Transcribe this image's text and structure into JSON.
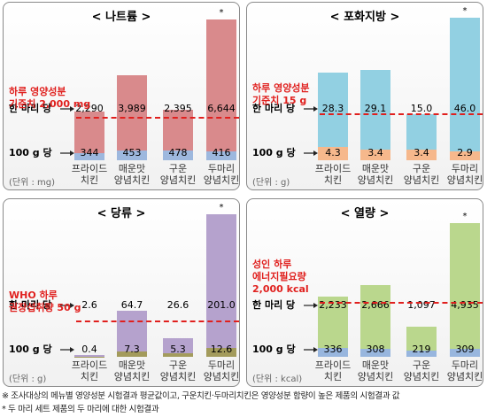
{
  "chart_data": [
    {
      "type": "bar",
      "title": "< 나트륨 >",
      "unit_label": "(단위 : mg)",
      "categories": [
        "프라이드 치킨",
        "매운맛 양념치킨",
        "구운 양념치킨",
        "두마리 양념치킨"
      ],
      "markers": [
        null,
        null,
        null,
        "*"
      ],
      "series": [
        {
          "name": "한 마리 당",
          "color": "#d98a8c",
          "values": [
            2290,
            3989,
            2395,
            6644
          ],
          "value_labels": [
            "2,290",
            "3,989",
            "2,395",
            "6,644"
          ]
        },
        {
          "name": "100 g 당",
          "color": "#9db8de",
          "values": [
            344,
            453,
            478,
            416
          ]
        }
      ],
      "reference": {
        "value": 2000,
        "label_lines": [
          "하루 영양성분",
          "기준치 2,000 mg"
        ],
        "color": "#e0201e"
      },
      "ylim": [
        0,
        7000
      ]
    },
    {
      "type": "bar",
      "title": "< 포화지방 >",
      "unit_label": "(단위 : g)",
      "categories": [
        "프라이드 치킨",
        "매운맛 양념치킨",
        "구운 양념치킨",
        "두마리 양념치킨"
      ],
      "markers": [
        null,
        null,
        null,
        "*"
      ],
      "series": [
        {
          "name": "한 마리 당",
          "color": "#92d0e2",
          "values": [
            28.3,
            29.1,
            15.0,
            46.0
          ],
          "value_labels": [
            "28.3",
            "29.1",
            "15.0",
            "46.0"
          ]
        },
        {
          "name": "100 g 당",
          "color": "#f6b88c",
          "values": [
            4.3,
            3.4,
            3.4,
            2.9
          ]
        }
      ],
      "reference": {
        "value": 15,
        "label_lines": [
          "하루 영양성분",
          "기준치 15 g"
        ],
        "color": "#e0201e"
      },
      "ylim": [
        0,
        48
      ]
    },
    {
      "type": "bar",
      "title": "< 당류 >",
      "unit_label": "(단위 : g)",
      "categories": [
        "프라이드 치킨",
        "매운맛 양념치킨",
        "구운 양념치킨",
        "두마리 양념치킨"
      ],
      "markers": [
        null,
        null,
        null,
        "*"
      ],
      "series": [
        {
          "name": "한 마리 당",
          "color": "#b5a2cd",
          "values": [
            2.6,
            64.7,
            26.6,
            201.0
          ],
          "value_labels": [
            "2.6",
            "64.7",
            "26.6",
            "201.0"
          ]
        },
        {
          "name": "100 g 당",
          "color": "#a39b5c",
          "values": [
            0.4,
            7.3,
            5.3,
            12.6
          ]
        }
      ],
      "reference": {
        "value": 50,
        "label_lines": [
          "WHO 하루",
          "권장섭취량 50 g"
        ],
        "color": "#e0201e"
      },
      "ylim": [
        0,
        210
      ]
    },
    {
      "type": "bar",
      "title": "< 열량 >",
      "unit_label": "(단위 : kcal)",
      "categories": [
        "프라이드 치킨",
        "매운맛 양념치킨",
        "구운 양념치킨",
        "두마리 양념치킨"
      ],
      "markers": [
        null,
        null,
        null,
        "*"
      ],
      "series": [
        {
          "name": "한 마리 당",
          "color": "#bad78d",
          "values": [
            2233,
            2666,
            1097,
            4935
          ],
          "value_labels": [
            "2,233",
            "2,666",
            "1,097",
            "4,935"
          ]
        },
        {
          "name": "100 g 당",
          "color": "#98b6de",
          "values": [
            336,
            308,
            219,
            309
          ]
        }
      ],
      "reference": {
        "value": 2000,
        "label_lines": [
          "성인 하루",
          "에너지필요량",
          "2,000 kcal"
        ],
        "color": "#e0201e"
      },
      "ylim": [
        0,
        5500
      ]
    }
  ],
  "footnotes": [
    "※ 조사대상의 메뉴별 영양성분 시험결과 평균값이고, 구운치킨·두마리치킨은 영양성분 함량이 높은 제품의 시험결과 값",
    "* 두 마리 세트 제품의 두 마리에 대한 시험결과"
  ]
}
